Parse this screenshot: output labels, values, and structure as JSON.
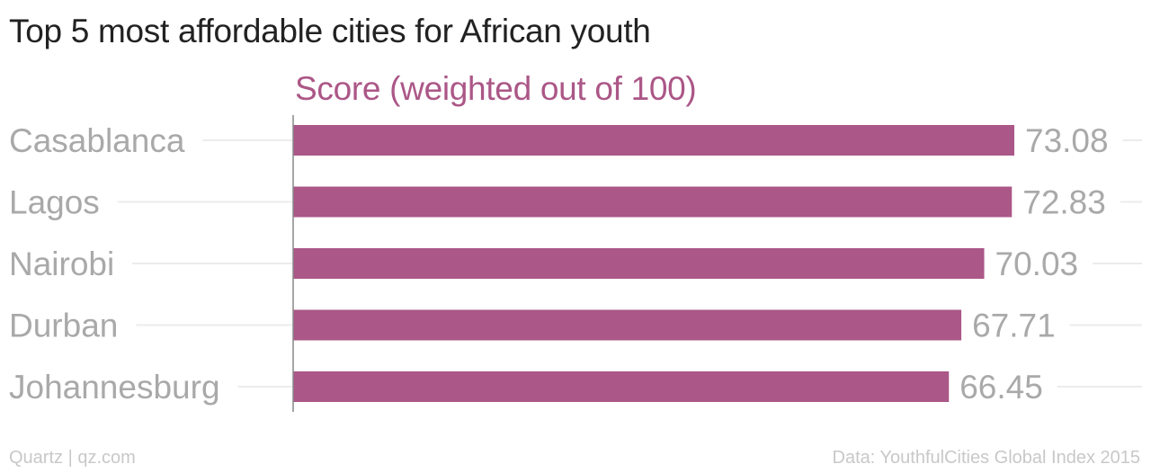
{
  "title": "Top 5 most affordable cities for African youth",
  "colors": {
    "bar": "#ab5787",
    "series_label": "#ab5787",
    "category_text": "#a9a9a9",
    "value_text": "#a9a9a9",
    "gridline": "#ececec",
    "axis": "#888888",
    "footer_text": "#c8c8c8"
  },
  "chart_data": {
    "type": "bar",
    "orientation": "horizontal",
    "series_label": "Score (weighted out of 100)",
    "categories": [
      "Casablanca",
      "Lagos",
      "Nairobi",
      "Durban",
      "Johannesburg"
    ],
    "series": [
      {
        "name": "Score (weighted out of 100)",
        "values": [
          73.08,
          72.83,
          70.03,
          67.71,
          66.45
        ]
      }
    ],
    "value_labels": [
      "73.08",
      "72.83",
      "70.03",
      "67.71",
      "66.45"
    ],
    "xlim": [
      0,
      73.08
    ],
    "grid": true,
    "legend": "none"
  },
  "footer": {
    "left": "Quartz | qz.com",
    "right": "Data: YouthfulCities Global Index 2015"
  }
}
